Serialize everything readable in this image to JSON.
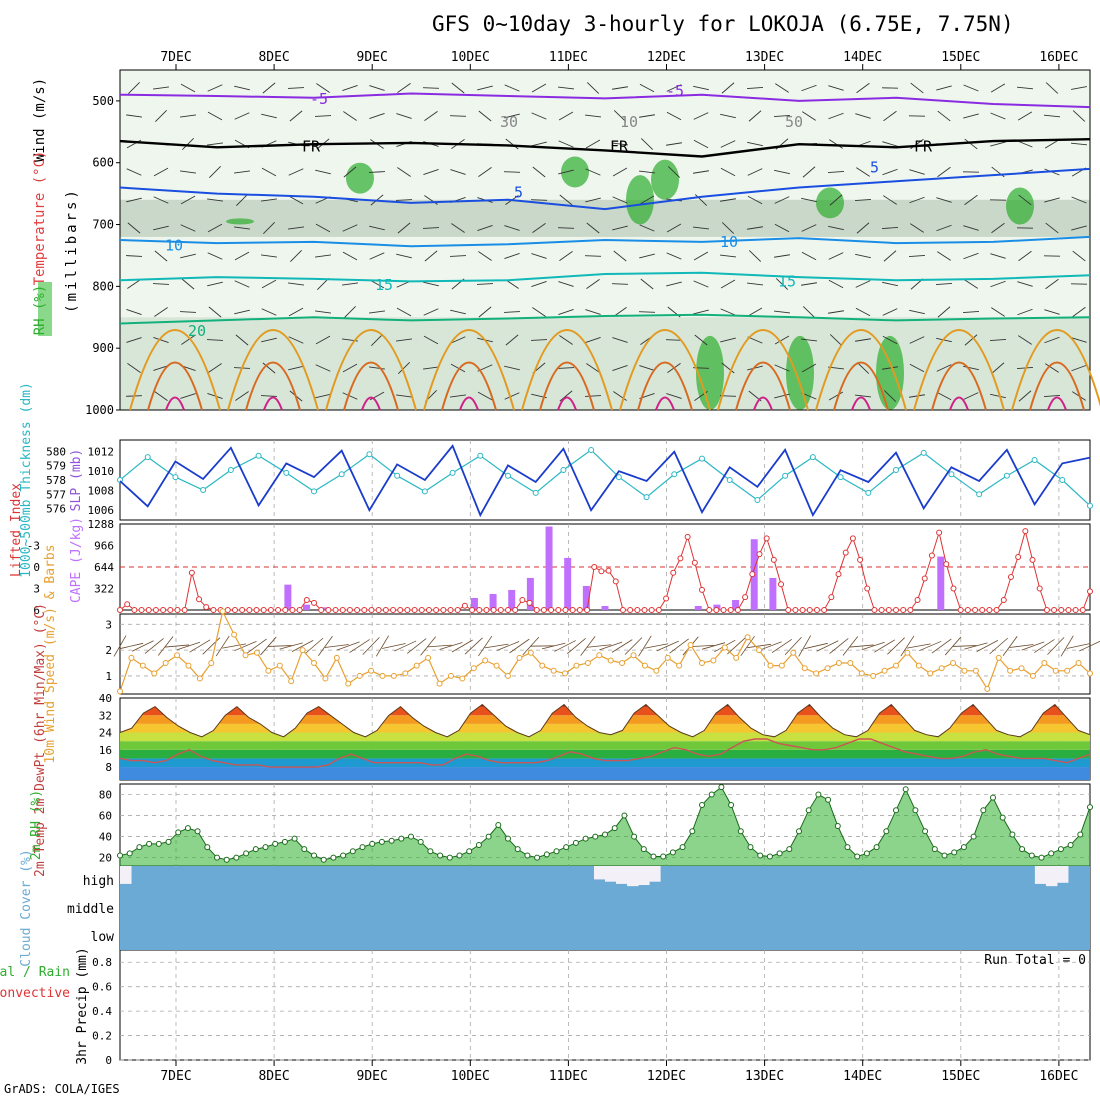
{
  "title": "GFS 0~10day 3-hourly for LOKOJA (6.75E, 7.75N)",
  "credit": "GrADS: COLA/IGES",
  "colors": {
    "grid": "#aaaaaa",
    "wind_line": "#000000",
    "thickness": "#2ab7c4",
    "slp": "#1a3ccc",
    "lifted": "#dd3333",
    "cape": "#c070ff",
    "wind_speed": "#e8a030",
    "rh_fill": "#2eae2e",
    "cloud": "#6aaad4",
    "dewpoint": "#cc5555"
  },
  "chart_data": [
    {
      "type": "line",
      "panel": "upper-air cross section",
      "x": [
        "7DEC",
        "8DEC",
        "9DEC",
        "10DEC",
        "11DEC",
        "12DEC",
        "13DEC",
        "14DEC",
        "15DEC",
        "16DEC"
      ],
      "side_labels": {
        "rh": "RH (%)",
        "temperature": "Temperature (°C)",
        "wind": "Wind (m/s)",
        "axis": "(millibars)"
      },
      "ylabel": "(millibars)",
      "yticks": [
        500,
        600,
        700,
        800,
        900,
        1000
      ],
      "ylim": [
        450,
        1000
      ],
      "contour_labels": {
        "minus5": "-5",
        "freezing": "FR",
        "plus5": "5",
        "plus10": "10",
        "plus15": "15",
        "plus20": "20",
        "rh10": "10",
        "rh30": "30",
        "rh50": "50"
      },
      "isotherms": [
        {
          "name": "-5",
          "color": "#8a2be2",
          "p": [
            490,
            492,
            495,
            488,
            492,
            496,
            490,
            500,
            495,
            505,
            510
          ]
        },
        {
          "name": "FR",
          "color": "#000000",
          "p": [
            565,
            575,
            570,
            568,
            572,
            580,
            590,
            570,
            575,
            565,
            562
          ]
        },
        {
          "name": "5",
          "color": "#1a4ee0",
          "p": [
            640,
            650,
            655,
            665,
            660,
            675,
            655,
            640,
            630,
            620,
            610
          ]
        },
        {
          "name": "10",
          "color": "#1a8ee6",
          "p": [
            725,
            730,
            728,
            735,
            732,
            725,
            728,
            722,
            730,
            728,
            720
          ]
        },
        {
          "name": "15",
          "color": "#10b8b8",
          "p": [
            790,
            785,
            788,
            792,
            790,
            780,
            778,
            785,
            790,
            788,
            782
          ]
        },
        {
          "name": "20",
          "color": "#12b07a",
          "p": [
            860,
            855,
            850,
            855,
            852,
            848,
            846,
            850,
            855,
            852,
            850
          ]
        }
      ]
    },
    {
      "type": "line",
      "panel": "thickness and SLP",
      "thickness_label": "1000~500mb Thickness (dm)",
      "slp_label": "SLP (mb)",
      "left_ticks": [
        576,
        577,
        578,
        579,
        580
      ],
      "right_ticks": [
        1006,
        1008,
        1010,
        1012
      ],
      "left_ylim": [
        575.2,
        580.8
      ],
      "right_ylim": [
        1005,
        1013.2
      ],
      "thickness": [
        578,
        579.6,
        578.2,
        577.3,
        578.7,
        579.7,
        578.5,
        577.2,
        578.4,
        579.8,
        578.3,
        577.2,
        578.5,
        579.7,
        578.3,
        577.1,
        578.7,
        580.1,
        578.2,
        576.8,
        578.4,
        579.5,
        578,
        576.6,
        578.3,
        579.6,
        578.2,
        577.1,
        578.7,
        579.9,
        578.4,
        577,
        578.3,
        579.4,
        578,
        576.2
      ],
      "slp": [
        1009,
        1006.4,
        1011,
        1009.2,
        1012.4,
        1006.5,
        1010.8,
        1009.4,
        1012.1,
        1006,
        1010.7,
        1009.1,
        1012.6,
        1005.5,
        1010.6,
        1008.9,
        1012.3,
        1006,
        1010,
        1009,
        1012,
        1005.8,
        1010.4,
        1008.4,
        1012.2,
        1005.5,
        1010.1,
        1008.9,
        1011.9,
        1006.2,
        1010.4,
        1009,
        1012.2,
        1006.6,
        1010.8,
        1011.4
      ]
    },
    {
      "type": "bar",
      "panel": "lifted index and CAPE",
      "lifted_label": "Lifted Index",
      "cape_label": "CAPE (J/kg)",
      "left_ticks": [
        -3,
        0,
        3,
        6
      ],
      "left_tick_labels": [
        "-3",
        "0",
        "3",
        "6"
      ],
      "right_ticks": [
        322,
        644,
        966,
        1288
      ],
      "lifted_ylim": [
        6,
        -6
      ],
      "cape_ylim": [
        0,
        1288
      ],
      "lifted_index": [
        6,
        5.2,
        6,
        6,
        6,
        6,
        6,
        6,
        6,
        6,
        0.8,
        4.5,
        5.6,
        6,
        6,
        6,
        6,
        6,
        6,
        6,
        6,
        6,
        6,
        6,
        6,
        6,
        4.6,
        5,
        6,
        6,
        6,
        6,
        6,
        6,
        6,
        6,
        6,
        6,
        6,
        6,
        6,
        6,
        6,
        6,
        6,
        6,
        6,
        6,
        5.4,
        6,
        6,
        6,
        6,
        6,
        6,
        6,
        4.6,
        5,
        6,
        6,
        6,
        6,
        6,
        6,
        6,
        6,
        0,
        0.6,
        0.5,
        2,
        6,
        6,
        6,
        6,
        6,
        6,
        4.4,
        0.8,
        -1.2,
        -4.2,
        -0.6,
        3.2,
        6,
        6,
        6,
        6,
        6,
        4.2,
        1,
        -1.8,
        -4,
        -1,
        2.4,
        6,
        6,
        6,
        6,
        6,
        6,
        4.2,
        1,
        -2,
        -4,
        -1,
        3,
        6,
        6,
        6,
        6,
        6,
        6,
        4.6,
        1.6,
        -1.6,
        -4.8,
        -0.4,
        3,
        6,
        6,
        6,
        6,
        6,
        6,
        4.6,
        1.4,
        -1.4,
        -5,
        -1,
        3,
        6,
        6,
        6,
        6,
        6,
        6,
        3.4
      ],
      "cape_x_hours": [
        111,
        114,
        117,
        120,
        123,
        126,
        129,
        132,
        135,
        138,
        141,
        144,
        147,
        150,
        153,
        156,
        159,
        162,
        165,
        168,
        171,
        174,
        177,
        180,
        183,
        186,
        189,
        192,
        195,
        198,
        201,
        204,
        207,
        210,
        213,
        216,
        219,
        222,
        225,
        228,
        231,
        234
      ],
      "cape": [
        380,
        80,
        40,
        0,
        0,
        0,
        0,
        0,
        0,
        0,
        180,
        240,
        300,
        480,
        1250,
        780,
        360,
        60,
        0,
        0,
        0,
        0,
        60,
        80,
        150,
        1060,
        480,
        0,
        0,
        0,
        0,
        0,
        0,
        0,
        0,
        800,
        0,
        0,
        0,
        0,
        0,
        0,
        0,
        0,
        0,
        0,
        0,
        0,
        0,
        0,
        300,
        0
      ]
    },
    {
      "type": "line",
      "panel": "10m wind",
      "label": "10m Wind Speed (m/s) & Barbs",
      "yticks": [
        1,
        2,
        3
      ],
      "ylim": [
        0.3,
        3.4
      ],
      "speed": [
        0.4,
        1.7,
        1.4,
        1.1,
        1.5,
        1.8,
        1.4,
        0.9,
        1.5,
        3.5,
        2.6,
        1.8,
        1.9,
        1.2,
        1.4,
        0.8,
        2,
        1.5,
        0.9,
        1.7,
        0.7,
        1,
        1.2,
        1,
        1,
        1.1,
        1.4,
        1.7,
        0.7,
        1,
        0.9,
        1.3,
        1.6,
        1.4,
        1,
        1.7,
        1.9,
        1.4,
        1.2,
        1.1,
        1.4,
        1.5,
        1.8,
        1.6,
        1.5,
        1.8,
        1.4,
        1.2,
        1.7,
        1.4,
        2.2,
        1.5,
        1.6,
        2.1,
        1.7,
        2.5,
        2,
        1.4,
        1.4,
        1.9,
        1.3,
        1.1,
        1.3,
        1.5,
        1.5,
        1.1,
        1,
        1.2,
        1.4,
        1.9,
        1.4,
        1.1,
        1.3,
        1.5,
        1.2,
        1.2,
        0.5,
        1.7,
        1.2,
        1.3,
        1,
        1.5,
        1.2,
        1.2,
        1.5,
        1.1
      ]
    },
    {
      "type": "area",
      "panel": "2m temperature",
      "label": "2m Temp 2m DewPt (6hr Min/Max) (°C)",
      "yticks": [
        8,
        16,
        24,
        32,
        40
      ],
      "ylim": [
        2,
        40
      ],
      "temp": [
        24,
        26,
        33,
        36,
        31,
        27,
        24,
        22,
        25,
        32,
        36,
        31,
        28,
        24,
        22,
        26,
        33,
        36,
        32,
        28,
        24,
        22,
        25,
        32,
        36,
        31,
        27,
        24,
        22,
        25,
        33,
        37,
        32,
        27,
        24,
        22,
        25,
        33,
        37,
        31,
        27,
        24,
        23,
        25,
        33,
        37,
        32,
        27,
        24,
        22,
        25,
        33,
        37,
        31,
        26,
        23,
        22,
        25,
        33,
        37,
        31,
        26,
        23,
        22,
        25,
        33,
        37,
        31,
        25,
        23,
        22,
        26,
        33,
        37,
        31,
        25,
        23,
        22,
        25,
        33,
        37,
        31,
        25,
        23
      ],
      "dewpoint": [
        12,
        11,
        11,
        10,
        11,
        14,
        16,
        13,
        11,
        10,
        9,
        9,
        9,
        8,
        8,
        8,
        8,
        8,
        9,
        12,
        14,
        12,
        10,
        10,
        10,
        10,
        10,
        9,
        9,
        12,
        14,
        13,
        11,
        10,
        10,
        10,
        10,
        11,
        13,
        15,
        14,
        12,
        11,
        11,
        11,
        12,
        13,
        15,
        17,
        16,
        14,
        13,
        14,
        17,
        20,
        21,
        21,
        19,
        18,
        17,
        16,
        16,
        17,
        19,
        21,
        21,
        19,
        17,
        15,
        14,
        13,
        12,
        12,
        13,
        15,
        16,
        14,
        13,
        12,
        12,
        12,
        11,
        10,
        12,
        14
      ]
    },
    {
      "type": "area",
      "panel": "2m relative humidity",
      "label": "2m RH (%)",
      "yticks": [
        20,
        40,
        60,
        80
      ],
      "ylim": [
        12,
        90
      ],
      "rh": [
        22,
        24,
        30,
        33,
        33,
        35,
        44,
        48,
        45,
        30,
        20,
        18,
        20,
        24,
        28,
        30,
        33,
        35,
        38,
        28,
        22,
        18,
        20,
        22,
        26,
        30,
        33,
        35,
        36,
        38,
        40,
        35,
        26,
        22,
        20,
        22,
        26,
        32,
        40,
        51,
        38,
        28,
        22,
        20,
        23,
        26,
        30,
        34,
        38,
        40,
        42,
        48,
        60,
        40,
        28,
        21,
        21,
        25,
        30,
        45,
        70,
        80,
        87,
        70,
        45,
        30,
        22,
        21,
        24,
        28,
        45,
        65,
        80,
        75,
        50,
        30,
        21,
        24,
        30,
        45,
        65,
        85,
        65,
        45,
        28,
        22,
        25,
        30,
        40,
        65,
        77,
        58,
        42,
        28,
        22,
        20,
        24,
        28,
        32,
        42,
        68
      ]
    },
    {
      "type": "heatmap",
      "panel": "cloud cover",
      "label": "Cloud Cover (%)",
      "levels": [
        "high",
        "middle",
        "low"
      ],
      "high_pct": [
        80,
        35,
        20,
        5,
        5,
        5,
        5,
        5,
        25,
        30,
        25,
        25,
        25,
        15,
        15,
        10,
        10,
        5,
        15,
        20,
        20,
        10,
        10,
        10,
        5,
        5,
        5,
        5,
        5,
        10,
        20,
        15,
        5,
        5,
        5,
        5,
        5,
        5,
        5,
        5,
        5,
        10,
        30,
        60,
        70,
        80,
        90,
        85,
        70,
        20,
        15,
        5,
        5,
        5,
        5,
        5,
        5,
        5,
        5,
        5,
        5,
        5,
        5,
        5,
        5,
        5,
        5,
        5,
        5,
        5,
        5,
        10,
        25,
        5,
        5,
        5,
        5,
        5,
        5,
        5,
        5,
        5,
        40,
        80,
        90,
        75,
        20,
        0
      ],
      "middle_pct": [
        0,
        0,
        0,
        0,
        0,
        0,
        0,
        0,
        0,
        0,
        0,
        0,
        0,
        0,
        0,
        0,
        0,
        0,
        0,
        0,
        0,
        0,
        0,
        0,
        0,
        0,
        0,
        0,
        0,
        0,
        0,
        0,
        0,
        0,
        0,
        0,
        0,
        0,
        0,
        0,
        0,
        0,
        0,
        0,
        0,
        0,
        0,
        0,
        0,
        0,
        0,
        0,
        0,
        0,
        0,
        0,
        30,
        25,
        20,
        0,
        0,
        0,
        0,
        15,
        20,
        20,
        15,
        0,
        0,
        0,
        0,
        0,
        0,
        0,
        0,
        0,
        0,
        0,
        0,
        0,
        0,
        0,
        0,
        0,
        0,
        0,
        0,
        0
      ],
      "low_pct": [
        0,
        0,
        0,
        0,
        0,
        0,
        0,
        0,
        0,
        0,
        0,
        0,
        0,
        0,
        0,
        0,
        0,
        0,
        0,
        0,
        0,
        0,
        0,
        0,
        0,
        0,
        0,
        0,
        0,
        0,
        0,
        0,
        0,
        0,
        0,
        0,
        0,
        0,
        0,
        0,
        0,
        0,
        0,
        0,
        0,
        0,
        0,
        0,
        0,
        0,
        0,
        0,
        0,
        0,
        0,
        0,
        0,
        0,
        0,
        0,
        0,
        0,
        0,
        20,
        0,
        0,
        0,
        0,
        0,
        0,
        0,
        0,
        0,
        0,
        0,
        0,
        0,
        0,
        0,
        0,
        0,
        0,
        0,
        0,
        0,
        0,
        0,
        0
      ]
    },
    {
      "type": "bar",
      "panel": "3hr precipitation",
      "label_total": "Total / Rain",
      "label_conv": "Convective",
      "ylabel": "3hr Precip (mm)",
      "yticks": [
        0,
        0.2,
        0.4,
        0.6,
        0.8
      ],
      "ylim": [
        0,
        0.9
      ],
      "run_total": "Run Total = 0",
      "precip": []
    }
  ]
}
